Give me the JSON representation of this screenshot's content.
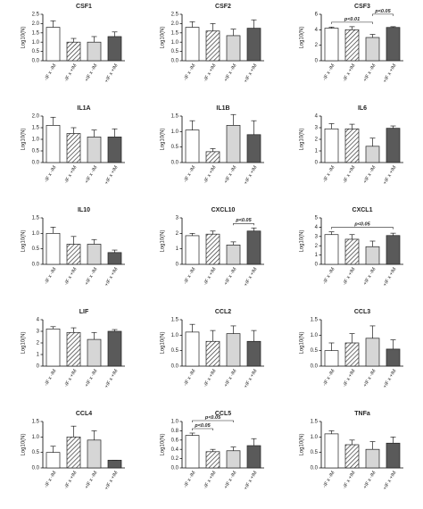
{
  "chart_data": [
    {
      "type": "bar",
      "title": "CSF1",
      "y_label": "Log10(N)",
      "categories": [
        "-IF x -IM",
        "-IF x +IM",
        "+IF x -IM",
        "+IF x +IM"
      ],
      "values": [
        1.8,
        1.0,
        1.0,
        1.3
      ],
      "errors": [
        0.35,
        0.2,
        0.3,
        0.25
      ],
      "colors": [
        "#ffffff",
        "#ffffff",
        "#d6d6d6",
        "#5a5a5a"
      ],
      "hatched": [
        false,
        true,
        false,
        false
      ],
      "ylim": [
        0,
        2.5
      ],
      "yticks": [
        {
          "value": 0,
          "label": "0.0"
        },
        0.5,
        {
          "value": 1,
          "label": "1.0"
        },
        1.5,
        {
          "value": 2,
          "label": "2.0"
        },
        2.5
      ],
      "annotations": []
    },
    {
      "type": "bar",
      "title": "CSF2",
      "y_label": "Log10(N)",
      "categories": [
        "-IF x -IM",
        "-IF x +IM",
        "+IF x -IM",
        "+IF x +IM"
      ],
      "values": [
        1.8,
        1.6,
        1.35,
        1.75
      ],
      "errors": [
        0.3,
        0.4,
        0.35,
        0.45
      ],
      "colors": [
        "#ffffff",
        "#ffffff",
        "#d6d6d6",
        "#5a5a5a"
      ],
      "hatched": [
        false,
        true,
        false,
        false
      ],
      "ylim": [
        0,
        2.5
      ],
      "yticks": [
        {
          "value": 0,
          "label": "0.0"
        },
        0.5,
        {
          "value": 1,
          "label": "1.0"
        },
        1.5,
        {
          "value": 2,
          "label": "2.0"
        },
        2.5
      ],
      "annotations": []
    },
    {
      "type": "bar",
      "title": "CSF3",
      "y_label": "Log10(N)",
      "categories": [
        "-IF x -IM",
        "-IF x +IM",
        "+IF x -IM",
        "+IF x +IM"
      ],
      "values": [
        4.2,
        4.0,
        3.0,
        4.3
      ],
      "errors": [
        0.15,
        0.4,
        0.4,
        0.1
      ],
      "colors": [
        "#ffffff",
        "#ffffff",
        "#d6d6d6",
        "#5a5a5a"
      ],
      "hatched": [
        false,
        true,
        false,
        false
      ],
      "ylim": [
        0,
        6
      ],
      "yticks": [
        0,
        2,
        4,
        6
      ],
      "annotations": [
        {
          "label": "p<0.01",
          "between": [
            "-IF x -IM",
            "+IF x -IM"
          ]
        },
        {
          "label": "p<0.05",
          "between": [
            "+IF x -IM",
            "+IF x +IM"
          ]
        }
      ]
    },
    {
      "type": "bar",
      "title": "IL1A",
      "y_label": "Log10(N)",
      "categories": [
        "-IF x -IM",
        "-IF x +IM",
        "+IF x -IM",
        "+IF x +IM"
      ],
      "values": [
        1.6,
        1.25,
        1.1,
        1.1
      ],
      "errors": [
        0.35,
        0.25,
        0.3,
        0.35
      ],
      "colors": [
        "#ffffff",
        "#ffffff",
        "#d6d6d6",
        "#5a5a5a"
      ],
      "hatched": [
        false,
        true,
        false,
        false
      ],
      "ylim": [
        0,
        2
      ],
      "yticks": [
        {
          "value": 0,
          "label": "0.0"
        },
        0.5,
        {
          "value": 1,
          "label": "1.0"
        },
        1.5,
        {
          "value": 2,
          "label": "2.0"
        }
      ],
      "annotations": []
    },
    {
      "type": "bar",
      "title": "IL1B",
      "y_label": "Log10(N)",
      "categories": [
        "-IF x -IM",
        "-IF x +IM",
        "+IF x -IM",
        "+IF x +IM"
      ],
      "values": [
        1.05,
        0.35,
        1.2,
        0.9
      ],
      "errors": [
        0.3,
        0.1,
        0.35,
        0.45
      ],
      "colors": [
        "#ffffff",
        "#ffffff",
        "#d6d6d6",
        "#5a5a5a"
      ],
      "hatched": [
        false,
        true,
        false,
        false
      ],
      "ylim": [
        0,
        1.5
      ],
      "yticks": [
        {
          "value": 0,
          "label": "0.0"
        },
        0.5,
        {
          "value": 1,
          "label": "1.0"
        },
        1.5
      ],
      "annotations": []
    },
    {
      "type": "bar",
      "title": "IL6",
      "y_label": "Log10(N)",
      "categories": [
        "-IF x -IM",
        "-IF x +IM",
        "+IF x -IM",
        "+IF x +IM"
      ],
      "values": [
        2.9,
        2.9,
        1.4,
        2.95
      ],
      "errors": [
        0.45,
        0.4,
        0.7,
        0.2
      ],
      "colors": [
        "#ffffff",
        "#ffffff",
        "#d6d6d6",
        "#5a5a5a"
      ],
      "hatched": [
        false,
        true,
        false,
        false
      ],
      "ylim": [
        0,
        4
      ],
      "yticks": [
        0,
        1,
        2,
        3,
        4
      ],
      "annotations": []
    },
    {
      "type": "bar",
      "title": "IL10",
      "y_label": "Log10(N)",
      "categories": [
        "-IF x -IM",
        "-IF x +IM",
        "+IF x -IM",
        "+IF x +IM"
      ],
      "values": [
        1.0,
        0.65,
        0.65,
        0.38
      ],
      "errors": [
        0.2,
        0.25,
        0.15,
        0.08
      ],
      "colors": [
        "#ffffff",
        "#ffffff",
        "#d6d6d6",
        "#5a5a5a"
      ],
      "hatched": [
        false,
        true,
        false,
        false
      ],
      "ylim": [
        0,
        1.5
      ],
      "yticks": [
        {
          "value": 0,
          "label": "0.0"
        },
        0.5,
        {
          "value": 1,
          "label": "1.0"
        },
        1.5
      ],
      "annotations": []
    },
    {
      "type": "bar",
      "title": "CXCL10",
      "y_label": "Log10(N)",
      "categories": [
        "-IF x -IM",
        "-IF x +IM",
        "+IF x -IM",
        "+IF x +IM"
      ],
      "values": [
        1.85,
        1.95,
        1.25,
        2.15
      ],
      "errors": [
        0.15,
        0.2,
        0.2,
        0.2
      ],
      "colors": [
        "#ffffff",
        "#ffffff",
        "#d6d6d6",
        "#5a5a5a"
      ],
      "hatched": [
        false,
        true,
        false,
        false
      ],
      "ylim": [
        0,
        3
      ],
      "yticks": [
        0,
        1,
        2,
        3
      ],
      "annotations": [
        {
          "label": "p<0.05",
          "between": [
            "+IF x -IM",
            "+IF x +IM"
          ]
        }
      ]
    },
    {
      "type": "bar",
      "title": "CXCL1",
      "y_label": "Log10(N)",
      "categories": [
        "-IF x -IM",
        "-IF x +IM",
        "+IF x -IM",
        "+IF x +IM"
      ],
      "values": [
        3.2,
        2.7,
        1.9,
        3.1
      ],
      "errors": [
        0.3,
        0.5,
        0.6,
        0.25
      ],
      "colors": [
        "#ffffff",
        "#ffffff",
        "#d6d6d6",
        "#5a5a5a"
      ],
      "hatched": [
        false,
        true,
        false,
        false
      ],
      "ylim": [
        0,
        5
      ],
      "yticks": [
        0,
        1,
        2,
        3,
        4,
        5
      ],
      "annotations": [
        {
          "label": "p<0.05",
          "between": [
            "-IF x -IM",
            "+IF x +IM"
          ]
        }
      ]
    },
    {
      "type": "bar",
      "title": "LIF",
      "y_label": "Log10(N)",
      "categories": [
        "-IF x -IM",
        "-IF x +IM",
        "+IF x -IM",
        "+IF x +IM"
      ],
      "values": [
        3.2,
        2.9,
        2.3,
        3.0
      ],
      "errors": [
        0.2,
        0.4,
        0.6,
        0.15
      ],
      "colors": [
        "#ffffff",
        "#ffffff",
        "#d6d6d6",
        "#5a5a5a"
      ],
      "hatched": [
        false,
        true,
        false,
        false
      ],
      "ylim": [
        0,
        4
      ],
      "yticks": [
        0,
        1,
        2,
        3,
        4
      ],
      "annotations": []
    },
    {
      "type": "bar",
      "title": "CCL2",
      "y_label": "Log10(N)",
      "categories": [
        "-IF x -IM",
        "-IF x +IM",
        "+IF x -IM",
        "+IF x +IM"
      ],
      "values": [
        1.1,
        0.8,
        1.05,
        0.8
      ],
      "errors": [
        0.25,
        0.35,
        0.25,
        0.35
      ],
      "colors": [
        "#ffffff",
        "#ffffff",
        "#d6d6d6",
        "#5a5a5a"
      ],
      "hatched": [
        false,
        true,
        false,
        false
      ],
      "ylim": [
        0,
        1.5
      ],
      "yticks": [
        {
          "value": 0,
          "label": "0.0"
        },
        0.5,
        {
          "value": 1,
          "label": "1.0"
        },
        1.5
      ],
      "annotations": []
    },
    {
      "type": "bar",
      "title": "CCL3",
      "y_label": "Log10(N)",
      "categories": [
        "-IF x -IM",
        "-IF x +IM",
        "+IF x -IM",
        "+IF x +IM"
      ],
      "values": [
        0.5,
        0.75,
        0.9,
        0.55
      ],
      "errors": [
        0.25,
        0.3,
        0.4,
        0.3
      ],
      "colors": [
        "#ffffff",
        "#ffffff",
        "#d6d6d6",
        "#5a5a5a"
      ],
      "hatched": [
        false,
        true,
        false,
        false
      ],
      "ylim": [
        0,
        1.5
      ],
      "yticks": [
        {
          "value": 0,
          "label": "0.0"
        },
        0.5,
        {
          "value": 1,
          "label": "1.0"
        },
        1.5
      ],
      "annotations": []
    },
    {
      "type": "bar",
      "title": "CCL4",
      "y_label": "Log10(N)",
      "categories": [
        "-IF x -IM",
        "-IF x +IM",
        "+IF x -IM",
        "+IF x +IM"
      ],
      "values": [
        0.5,
        1.0,
        0.9,
        0.25
      ],
      "errors": [
        0.2,
        0.35,
        0.3,
        0
      ],
      "colors": [
        "#ffffff",
        "#ffffff",
        "#d6d6d6",
        "#5a5a5a"
      ],
      "hatched": [
        false,
        true,
        false,
        false
      ],
      "ylim": [
        0,
        1.5
      ],
      "yticks": [
        {
          "value": 0,
          "label": "0.0"
        },
        0.5,
        {
          "value": 1,
          "label": "1.0"
        },
        1.5
      ],
      "annotations": []
    },
    {
      "type": "bar",
      "title": "CCL5",
      "y_label": "Log10(N)",
      "categories": [
        "-IF x -IM",
        "-IF x +IM",
        "+IF x -IM",
        "+IF x +IM"
      ],
      "values": [
        0.7,
        0.35,
        0.37,
        0.48
      ],
      "errors": [
        0.05,
        0.05,
        0.08,
        0.15
      ],
      "colors": [
        "#ffffff",
        "#ffffff",
        "#d6d6d6",
        "#5a5a5a"
      ],
      "hatched": [
        false,
        true,
        false,
        false
      ],
      "ylim": [
        0,
        1
      ],
      "yticks": [
        {
          "value": 0,
          "label": "0.0"
        },
        0.2,
        0.4,
        0.6,
        0.8,
        {
          "value": 1,
          "label": "1.0"
        }
      ],
      "annotations": [
        {
          "label": "p<0.05",
          "between": [
            "-IF x -IM",
            "-IF x +IM"
          ]
        },
        {
          "label": "p<0.05",
          "between": [
            "-IF x -IM",
            "+IF x -IM"
          ]
        }
      ]
    },
    {
      "type": "bar",
      "title": "TNFa",
      "y_label": "Log10(N)",
      "categories": [
        "-IF x -IM",
        "-IF x +IM",
        "+IF x -IM",
        "+IF x +IM"
      ],
      "values": [
        1.1,
        0.75,
        0.6,
        0.8
      ],
      "errors": [
        0.1,
        0.15,
        0.25,
        0.2
      ],
      "colors": [
        "#ffffff",
        "#ffffff",
        "#d6d6d6",
        "#5a5a5a"
      ],
      "hatched": [
        false,
        true,
        false,
        false
      ],
      "ylim": [
        0,
        1.5
      ],
      "yticks": [
        {
          "value": 0,
          "label": "0.0"
        },
        0.5,
        {
          "value": 1,
          "label": "1.0"
        },
        1.5
      ],
      "annotations": []
    }
  ]
}
